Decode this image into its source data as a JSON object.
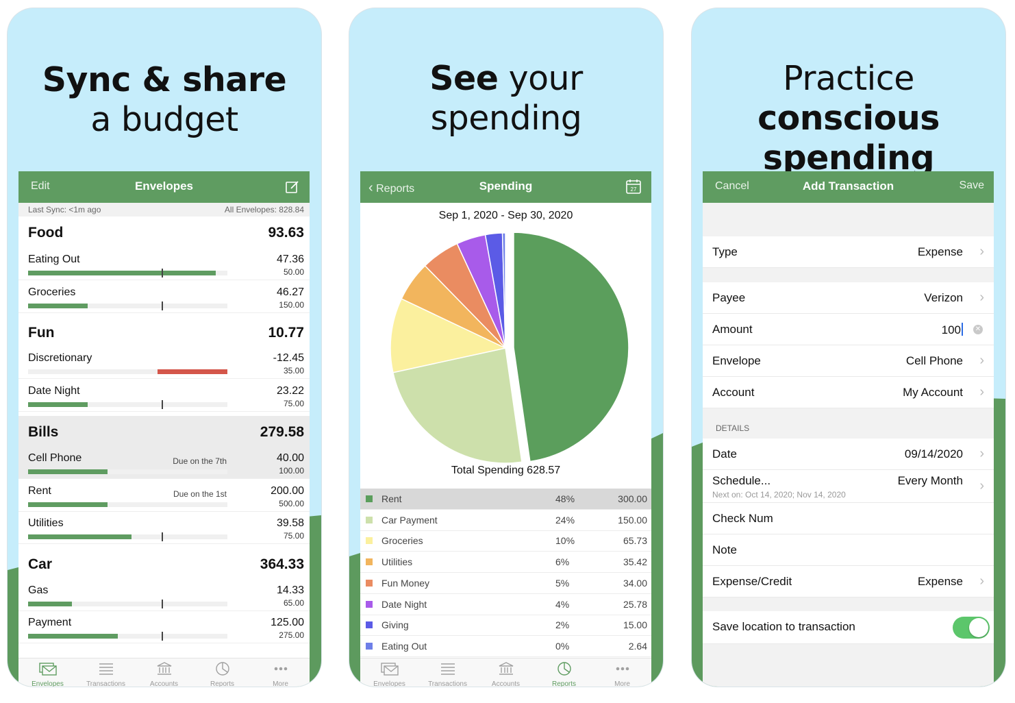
{
  "cards": [
    {
      "headline": {
        "line1_bold": "Sync & share",
        "line2_normal": "a budget"
      },
      "navbar": {
        "left": "Edit",
        "title": "Envelopes",
        "right_icon": "compose-icon"
      },
      "sync": {
        "left": "Last Sync: <1m ago",
        "right": "All Envelopes: 828.84"
      },
      "groups": [
        {
          "name": "Food",
          "total": "93.63",
          "envelopes": [
            {
              "name": "Eating Out",
              "amount": "47.36",
              "budget": "50.00",
              "due": "",
              "progress": 0.94,
              "over": false,
              "tick": 0.67
            },
            {
              "name": "Groceries",
              "amount": "46.27",
              "budget": "150.00",
              "due": "",
              "progress": 0.3,
              "over": false,
              "tick": 0.67
            }
          ]
        },
        {
          "name": "Fun",
          "total": "10.77",
          "envelopes": [
            {
              "name": "Discretionary",
              "amount": "-12.45",
              "budget": "35.00",
              "due": "",
              "progress": 0.35,
              "over": true,
              "tick": null
            },
            {
              "name": "Date Night",
              "amount": "23.22",
              "budget": "75.00",
              "due": "",
              "progress": 0.3,
              "over": false,
              "tick": 0.67
            }
          ]
        },
        {
          "name": "Bills",
          "total": "279.58",
          "envelopes": [
            {
              "name": "Cell Phone",
              "amount": "40.00",
              "budget": "100.00",
              "due": "Due on the 7th",
              "progress": 0.4,
              "over": false,
              "tick": null
            },
            {
              "name": "Rent",
              "amount": "200.00",
              "budget": "500.00",
              "due": "Due on the 1st",
              "progress": 0.4,
              "over": false,
              "tick": null
            },
            {
              "name": "Utilities",
              "amount": "39.58",
              "budget": "75.00",
              "due": "",
              "progress": 0.52,
              "over": false,
              "tick": 0.67
            }
          ]
        },
        {
          "name": "Car",
          "total": "364.33",
          "envelopes": [
            {
              "name": "Gas",
              "amount": "14.33",
              "budget": "65.00",
              "due": "",
              "progress": 0.22,
              "over": false,
              "tick": 0.67
            },
            {
              "name": "Payment",
              "amount": "125.00",
              "budget": "275.00",
              "due": "",
              "progress": 0.45,
              "over": false,
              "tick": 0.67
            }
          ]
        }
      ],
      "tabs": [
        {
          "label": "Envelopes",
          "icon": "envelopes-icon",
          "active": true
        },
        {
          "label": "Transactions",
          "icon": "transactions-icon",
          "active": false
        },
        {
          "label": "Accounts",
          "icon": "accounts-icon",
          "active": false
        },
        {
          "label": "Reports",
          "icon": "reports-icon",
          "active": false
        },
        {
          "label": "More",
          "icon": "more-icon",
          "active": false
        }
      ]
    },
    {
      "headline": {
        "line1_bold": "See",
        "line1_normal": "your",
        "line2_normal": "spending"
      },
      "navbar": {
        "left": "Reports",
        "title": "Spending",
        "right_icon": "calendar-icon",
        "calendar_day": "27"
      },
      "date_range": "Sep 1, 2020 - Sep 30, 2020",
      "total_label": "Total Spending 628.57",
      "legend": [
        {
          "name": "Rent",
          "pct": "48%",
          "value": "300.00",
          "color": "#5b9e5c"
        },
        {
          "name": "Car Payment",
          "pct": "24%",
          "value": "150.00",
          "color": "#cde0ab"
        },
        {
          "name": "Groceries",
          "pct": "10%",
          "value": "65.73",
          "color": "#fbf09e"
        },
        {
          "name": "Utilities",
          "pct": "6%",
          "value": "35.42",
          "color": "#f2b55d"
        },
        {
          "name": "Fun Money",
          "pct": "5%",
          "value": "34.00",
          "color": "#ea8c61"
        },
        {
          "name": "Date Night",
          "pct": "4%",
          "value": "25.78",
          "color": "#a85bea"
        },
        {
          "name": "Giving",
          "pct": "2%",
          "value": "15.00",
          "color": "#5b5be6"
        },
        {
          "name": "Eating Out",
          "pct": "0%",
          "value": "2.64",
          "color": "#6e7fe8"
        }
      ],
      "tabs": [
        {
          "label": "Envelopes",
          "icon": "envelopes-icon",
          "active": false
        },
        {
          "label": "Transactions",
          "icon": "transactions-icon",
          "active": false
        },
        {
          "label": "Accounts",
          "icon": "accounts-icon",
          "active": false
        },
        {
          "label": "Reports",
          "icon": "reports-icon",
          "active": true
        },
        {
          "label": "More",
          "icon": "more-icon",
          "active": false
        }
      ]
    },
    {
      "headline": {
        "line1_normal": "Practice",
        "line1_bold": "conscious",
        "line2_bold": "spending"
      },
      "navbar": {
        "left": "Cancel",
        "title": "Add Transaction",
        "right": "Save"
      },
      "rows": {
        "type": {
          "label": "Type",
          "value": "Expense"
        },
        "payee": {
          "label": "Payee",
          "value": "Verizon"
        },
        "amount": {
          "label": "Amount",
          "value": "100"
        },
        "envelope": {
          "label": "Envelope",
          "value": "Cell Phone"
        },
        "account": {
          "label": "Account",
          "value": "My Account"
        },
        "details_label": "DETAILS",
        "date": {
          "label": "Date",
          "value": "09/14/2020"
        },
        "schedule": {
          "label": "Schedule...",
          "value": "Every Month",
          "sub": "Next on: Oct 14, 2020; Nov 14, 2020"
        },
        "check": {
          "label": "Check Num"
        },
        "note": {
          "label": "Note"
        },
        "expense_credit": {
          "label": "Expense/Credit",
          "value": "Expense"
        },
        "save_location": {
          "label": "Save location to transaction",
          "on": true
        }
      }
    }
  ]
}
